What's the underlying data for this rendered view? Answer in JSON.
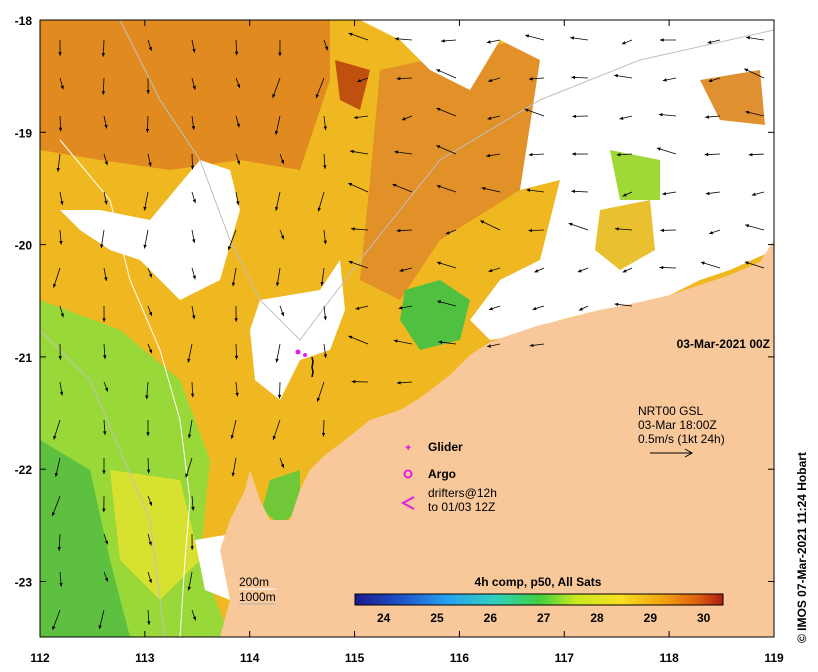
{
  "map": {
    "date_label": "03-Mar-2021 00Z",
    "vertical_credit": "© IMOS 07-Mar-2021 11:24 Hobart",
    "x_ticks": [
      "112",
      "113",
      "114",
      "115",
      "116",
      "117",
      "118",
      "119"
    ],
    "y_ticks": [
      "-18",
      "-19",
      "-20",
      "-21",
      "-22",
      "-23"
    ],
    "colors": {
      "land": "#f8c89a",
      "cloud": "#ffffff",
      "sst_warm": "#e09020",
      "sst_mid": "#f0c020",
      "sst_cool": "#7ed030"
    }
  },
  "legend": {
    "glider": "Glider",
    "argo": "Argo",
    "drifters_line1": "drifters@12h",
    "drifters_line2": "to 01/03 12Z",
    "current_line1": "NRT00 GSL",
    "current_line2": "03-Mar 18:00Z",
    "current_line3": "0.5m/s (1kt 24h)",
    "isobath_200": "200m",
    "isobath_1000": "1000m"
  },
  "colorbar": {
    "title": "4h comp, p50, All Sats",
    "ticks": [
      "24",
      "25",
      "26",
      "27",
      "28",
      "29",
      "30"
    ],
    "stops": [
      "#1a1a8c",
      "#1e50c8",
      "#28a0f0",
      "#30d0c0",
      "#40d040",
      "#c8e820",
      "#f8e020",
      "#f0a010",
      "#e06010",
      "#b01c10"
    ]
  }
}
